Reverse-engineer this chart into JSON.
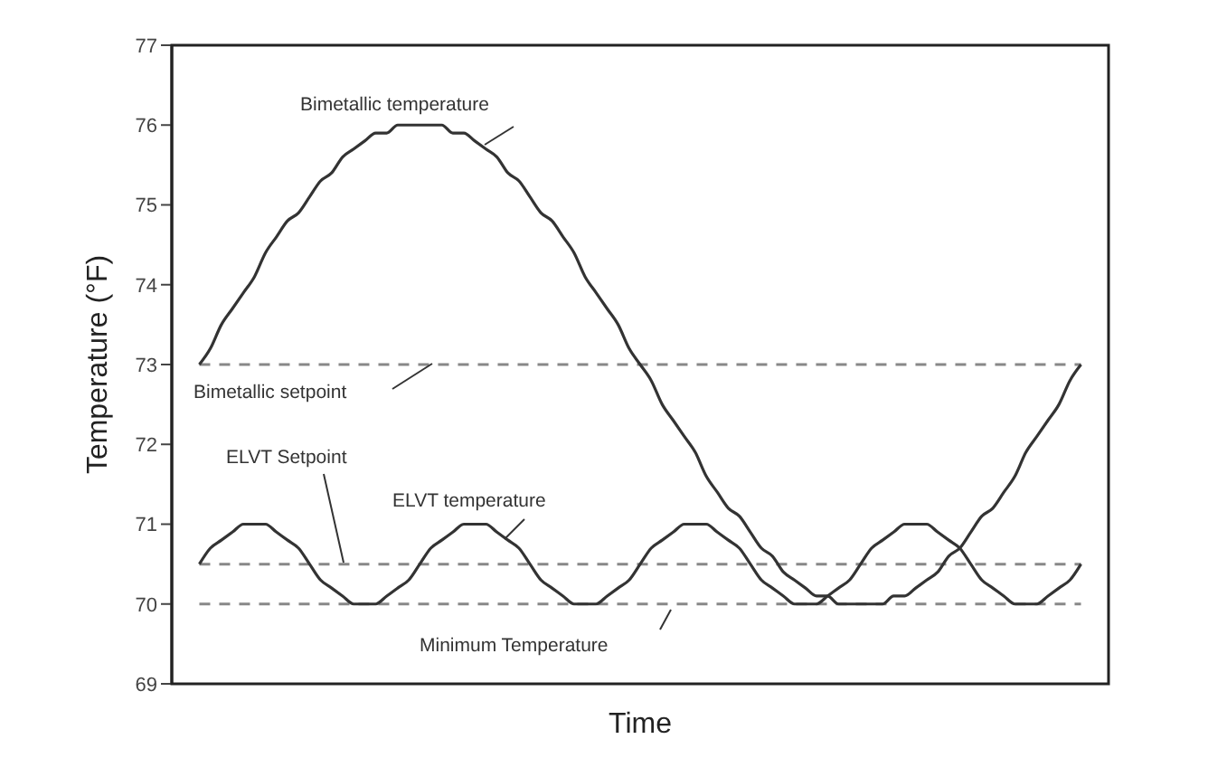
{
  "chart_data": {
    "type": "line",
    "xlabel": "Time",
    "ylabel": "Temperature (°F)",
    "categories": [
      null,
      null,
      null,
      null,
      null,
      null,
      null,
      null,
      null,
      null,
      null,
      null,
      null,
      null,
      null,
      null,
      null,
      null,
      null,
      null,
      null,
      null,
      null,
      null,
      null,
      null,
      null,
      null,
      null,
      null,
      null,
      null,
      null,
      null,
      null,
      null,
      null,
      null,
      null,
      null,
      null,
      null,
      null,
      null,
      null,
      null,
      null,
      null,
      null,
      null,
      null,
      null,
      null,
      null,
      null,
      null,
      null,
      null,
      null,
      null,
      null,
      null,
      null,
      null,
      null,
      null,
      null,
      null,
      null,
      null,
      null,
      null,
      null,
      null,
      null,
      null,
      null,
      null,
      null,
      null,
      null
    ],
    "series": [
      {
        "name": "Bimetallic temperature",
        "color": "#333333",
        "values": [
          73,
          73.2,
          73.5,
          73.7,
          73.9,
          74.1,
          74.4,
          74.6,
          74.8,
          74.9,
          75.1,
          75.3,
          75.4,
          75.6,
          75.7,
          75.8,
          75.9,
          75.9,
          76,
          76,
          76,
          76,
          76,
          75.9,
          75.9,
          75.8,
          75.7,
          75.6,
          75.4,
          75.3,
          75.1,
          74.9,
          74.8,
          74.6,
          74.4,
          74.1,
          73.9,
          73.7,
          73.5,
          73.2,
          73,
          72.8,
          72.5,
          72.3,
          72.1,
          71.9,
          71.6,
          71.4,
          71.2,
          71.1,
          70.9,
          70.7,
          70.6,
          70.4,
          70.3,
          70.2,
          70.1,
          70.1,
          70,
          70,
          70,
          70,
          70,
          70.1,
          70.1,
          70.2,
          70.3,
          70.4,
          70.6,
          70.7,
          70.9,
          71.1,
          71.2,
          71.4,
          71.6,
          71.9,
          72.1,
          72.3,
          72.5,
          72.8,
          73
        ]
      },
      {
        "name": "ELVT temperature",
        "color": "#333333",
        "values": [
          70.5,
          70.7,
          70.8,
          70.9,
          71,
          71,
          71,
          70.9,
          70.8,
          70.7,
          70.5,
          70.3,
          70.2,
          70.1,
          70,
          70,
          70,
          70.1,
          70.2,
          70.3,
          70.5,
          70.7,
          70.8,
          70.9,
          71,
          71,
          71,
          70.9,
          70.8,
          70.7,
          70.5,
          70.3,
          70.2,
          70.1,
          70,
          70,
          70,
          70.1,
          70.2,
          70.3,
          70.5,
          70.7,
          70.8,
          70.9,
          71,
          71,
          71,
          70.9,
          70.8,
          70.7,
          70.5,
          70.3,
          70.2,
          70.1,
          70,
          70,
          70,
          70.1,
          70.2,
          70.3,
          70.5,
          70.7,
          70.8,
          70.9,
          71,
          71,
          71,
          70.9,
          70.8,
          70.7,
          70.5,
          70.3,
          70.2,
          70.1,
          70,
          70,
          70,
          70.1,
          70.2,
          70.3,
          70.5
        ]
      }
    ],
    "ylim": [
      69,
      77
    ],
    "yticks": [
      69,
      70,
      71,
      72,
      73,
      74,
      75,
      76,
      77
    ],
    "ref_lines": [
      {
        "axis": "y",
        "value": 73,
        "label": "Bimetallic setpoint",
        "color": "#888888",
        "line_style": "dashed"
      },
      {
        "axis": "y",
        "value": 70.5,
        "label": "ELVT Setpoint",
        "color": "#888888",
        "line_style": "dashed"
      },
      {
        "axis": "y",
        "value": 70,
        "label": "Minimum Temperature",
        "color": "#888888",
        "line_style": "dashed"
      }
    ],
    "grid": false,
    "marker": "none",
    "line_style": "solid",
    "tick_labels": "y"
  }
}
